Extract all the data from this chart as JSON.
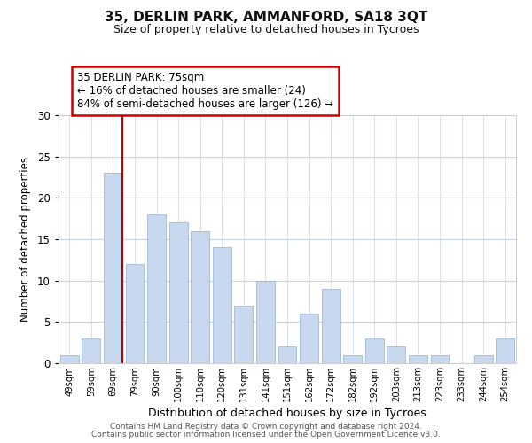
{
  "title": "35, DERLIN PARK, AMMANFORD, SA18 3QT",
  "subtitle": "Size of property relative to detached houses in Tycroes",
  "xlabel": "Distribution of detached houses by size in Tycroes",
  "ylabel": "Number of detached properties",
  "bar_labels": [
    "49sqm",
    "59sqm",
    "69sqm",
    "79sqm",
    "90sqm",
    "100sqm",
    "110sqm",
    "120sqm",
    "131sqm",
    "141sqm",
    "151sqm",
    "162sqm",
    "172sqm",
    "182sqm",
    "192sqm",
    "203sqm",
    "213sqm",
    "223sqm",
    "233sqm",
    "244sqm",
    "254sqm"
  ],
  "bar_values": [
    1,
    3,
    23,
    12,
    18,
    17,
    16,
    14,
    7,
    10,
    2,
    6,
    9,
    1,
    3,
    2,
    1,
    1,
    0,
    1,
    3
  ],
  "bar_color": "#c8d8ee",
  "bar_edgecolor": "#9fb8d8",
  "ylim": [
    0,
    30
  ],
  "yticks": [
    0,
    5,
    10,
    15,
    20,
    25,
    30
  ],
  "vline_bar_index": 2,
  "vline_color": "#bb0000",
  "annotation_title": "35 DERLIN PARK: 75sqm",
  "annotation_line1": "← 16% of detached houses are smaller (24)",
  "annotation_line2": "84% of semi-detached houses are larger (126) →",
  "annotation_box_edgecolor": "#cc0000",
  "footer1": "Contains HM Land Registry data © Crown copyright and database right 2024.",
  "footer2": "Contains public sector information licensed under the Open Government Licence v3.0.",
  "bg_color": "#ffffff",
  "grid_color": "#c8d4e4"
}
